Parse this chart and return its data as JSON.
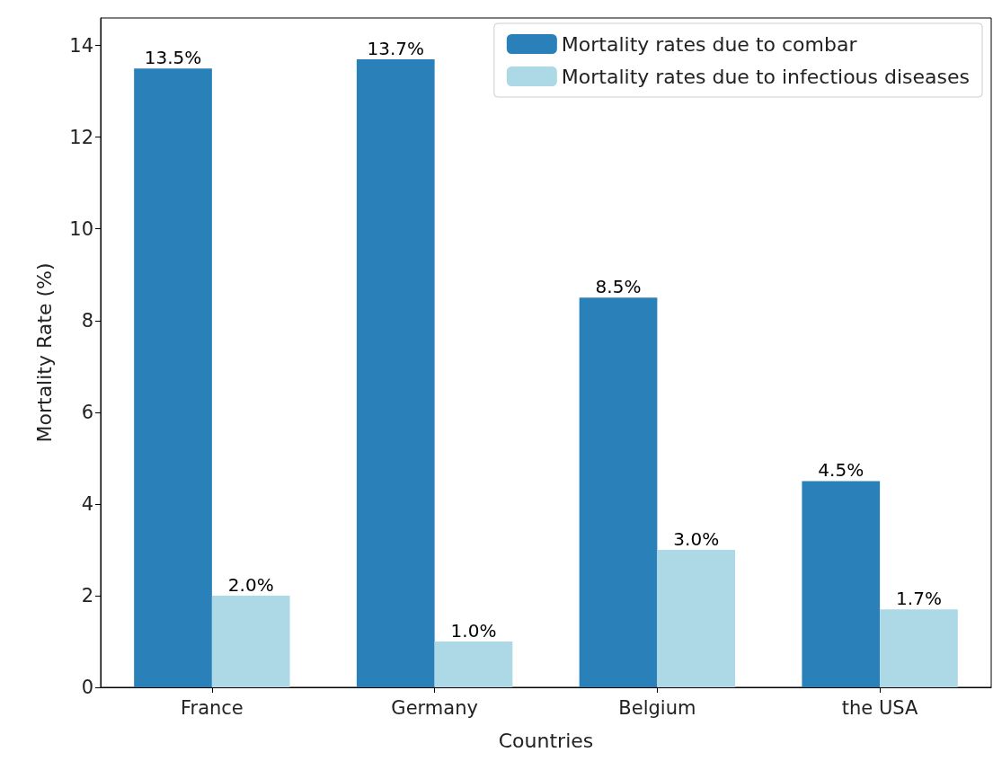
{
  "chart_data": {
    "type": "bar",
    "xlabel": "Countries",
    "ylabel": "Mortality Rate (%)",
    "categories": [
      "France",
      "Germany",
      "Belgium",
      "the USA"
    ],
    "series": [
      {
        "name": "Mortality rates due to combar",
        "color": "#2a80b9",
        "values": [
          13.5,
          13.7,
          8.5,
          4.5
        ],
        "value_labels": [
          "13.5%",
          "13.7%",
          "8.5%",
          "4.5%"
        ]
      },
      {
        "name": "Mortality rates due to infectious diseases",
        "color": "#add8e6",
        "values": [
          2.0,
          1.0,
          3.0,
          1.7
        ],
        "value_labels": [
          "2.0%",
          "1.0%",
          "3.0%",
          "1.7%"
        ]
      }
    ],
    "ylim": [
      0,
      14.6
    ],
    "yticks": [
      0,
      2,
      4,
      6,
      8,
      10,
      12,
      14
    ],
    "grid": false,
    "legend": "top right"
  }
}
